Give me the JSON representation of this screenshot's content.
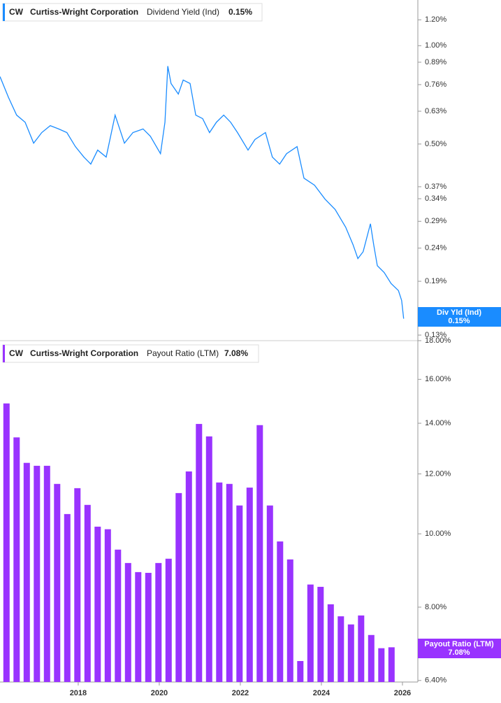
{
  "chart_data": [
    {
      "type": "line",
      "ticker": "CW",
      "company": "Curtiss-Wright Corporation",
      "metric": "Dividend Yield (Ind)",
      "value_label": "0.15%",
      "tag_label": "Div Yld (Ind)",
      "color": "#1a8cff",
      "log_scale": true,
      "xlim": [
        2016.07,
        2026.38
      ],
      "ylim": [
        0.125,
        1.38
      ],
      "yticks": [
        {
          "value": 0.13,
          "label": "0.13%"
        },
        {
          "value": 0.19,
          "label": "0.19%"
        },
        {
          "value": 0.24,
          "label": "0.24%"
        },
        {
          "value": 0.29,
          "label": "0.29%"
        },
        {
          "value": 0.34,
          "label": "0.34%"
        },
        {
          "value": 0.37,
          "label": "0.37%"
        },
        {
          "value": 0.5,
          "label": "0.50%"
        },
        {
          "value": 0.63,
          "label": "0.63%"
        },
        {
          "value": 0.76,
          "label": "0.76%"
        },
        {
          "value": 0.89,
          "label": "0.89%"
        },
        {
          "value": 1,
          "label": "1.00%"
        },
        {
          "value": 1.2,
          "label": "1.20%"
        }
      ],
      "x": [
        2016.07,
        2016.28,
        2016.48,
        2016.69,
        2016.9,
        2017.1,
        2017.31,
        2017.52,
        2017.72,
        2017.93,
        2018.14,
        2018.31,
        2018.48,
        2018.69,
        2018.91,
        2019.14,
        2019.35,
        2019.6,
        2019.78,
        2020.03,
        2020.14,
        2020.21,
        2020.29,
        2020.47,
        2020.59,
        2020.76,
        2020.9,
        2021.07,
        2021.24,
        2021.41,
        2021.59,
        2021.76,
        2021.93,
        2022.19,
        2022.36,
        2022.62,
        2022.79,
        2022.97,
        2023.14,
        2023.4,
        2023.57,
        2023.83,
        2024.09,
        2024.34,
        2024.6,
        2024.78,
        2024.9,
        2025.03,
        2025.21,
        2025.29,
        2025.38,
        2025.55,
        2025.72,
        2025.9,
        2025.98,
        2026.03
      ],
      "values": [
        0.804,
        0.694,
        0.613,
        0.583,
        0.503,
        0.542,
        0.569,
        0.556,
        0.542,
        0.491,
        0.456,
        0.434,
        0.479,
        0.456,
        0.613,
        0.503,
        0.542,
        0.556,
        0.528,
        0.467,
        0.583,
        0.866,
        0.766,
        0.711,
        0.785,
        0.766,
        0.613,
        0.598,
        0.542,
        0.583,
        0.613,
        0.583,
        0.542,
        0.479,
        0.516,
        0.542,
        0.456,
        0.434,
        0.467,
        0.491,
        0.393,
        0.374,
        0.339,
        0.315,
        0.278,
        0.246,
        0.223,
        0.234,
        0.285,
        0.246,
        0.212,
        0.202,
        0.187,
        0.178,
        0.166,
        0.146
      ]
    },
    {
      "type": "bar",
      "ticker": "CW",
      "company": "Curtiss-Wright Corporation",
      "metric": "Payout Ratio (LTM)",
      "value_label": "7.08%",
      "color": "#9933ff",
      "log_scale": true,
      "xlim": [
        2016.07,
        2026.38
      ],
      "ylim": [
        6.37,
        18
      ],
      "xticks": [
        2018,
        2020,
        2022,
        2024,
        2026
      ],
      "yticks": [
        {
          "value": 6.4,
          "label": "6.40%"
        },
        {
          "value": 8,
          "label": "8.00%"
        },
        {
          "value": 10,
          "label": "10.00%"
        },
        {
          "value": 12,
          "label": "12.00%"
        },
        {
          "value": 14,
          "label": "14.00%"
        },
        {
          "value": 16,
          "label": "16.00%"
        },
        {
          "value": 18,
          "label": "18.00%"
        }
      ],
      "x": [
        2016.23,
        2016.48,
        2016.73,
        2016.98,
        2017.23,
        2017.48,
        2017.73,
        2017.98,
        2018.23,
        2018.48,
        2018.73,
        2018.98,
        2019.23,
        2019.48,
        2019.73,
        2019.98,
        2020.23,
        2020.48,
        2020.73,
        2020.98,
        2021.23,
        2021.48,
        2021.73,
        2021.98,
        2022.23,
        2022.48,
        2022.73,
        2022.98,
        2023.23,
        2023.48,
        2023.73,
        2023.98,
        2024.23,
        2024.48,
        2024.73,
        2024.98,
        2025.23,
        2025.48,
        2025.73
      ],
      "values": [
        14.87,
        13.41,
        12.41,
        12.3,
        12.3,
        11.64,
        10.62,
        11.49,
        10.92,
        10.22,
        10.14,
        9.53,
        9.15,
        8.9,
        8.88,
        9.15,
        9.27,
        11.32,
        12.09,
        13.97,
        13.45,
        11.69,
        11.64,
        10.9,
        11.51,
        13.92,
        10.9,
        9.77,
        9.25,
        6.79,
        8.57,
        8.51,
        8.07,
        7.78,
        7.59,
        7.8,
        7.35,
        7.06,
        7.08
      ]
    }
  ]
}
